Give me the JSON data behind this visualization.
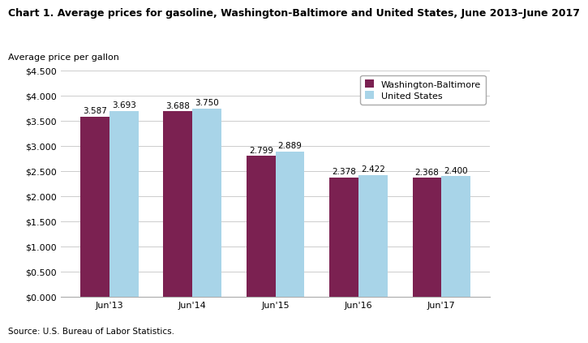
{
  "title": "Chart 1. Average prices for gasoline, Washington-Baltimore and United States, June 2013–June 2017",
  "ylabel": "Average price per gallon",
  "source": "Source: U.S. Bureau of Labor Statistics.",
  "categories": [
    "Jun'13",
    "Jun'14",
    "Jun'15",
    "Jun'16",
    "Jun'17"
  ],
  "wb_values": [
    3.587,
    3.688,
    2.799,
    2.378,
    2.368
  ],
  "us_values": [
    3.693,
    3.75,
    2.889,
    2.422,
    2.4
  ],
  "wb_color": "#7B2151",
  "us_color": "#A8D4E8",
  "wb_label": "Washington-Baltimore",
  "us_label": "United States",
  "ylim": [
    0,
    4.5
  ],
  "yticks": [
    0.0,
    0.5,
    1.0,
    1.5,
    2.0,
    2.5,
    3.0,
    3.5,
    4.0,
    4.5
  ],
  "bar_width": 0.35,
  "grid_color": "#cccccc",
  "background_color": "#ffffff",
  "title_fontsize": 9,
  "tick_fontsize": 8,
  "annotation_fontsize": 7.5,
  "legend_fontsize": 8,
  "source_fontsize": 7.5
}
